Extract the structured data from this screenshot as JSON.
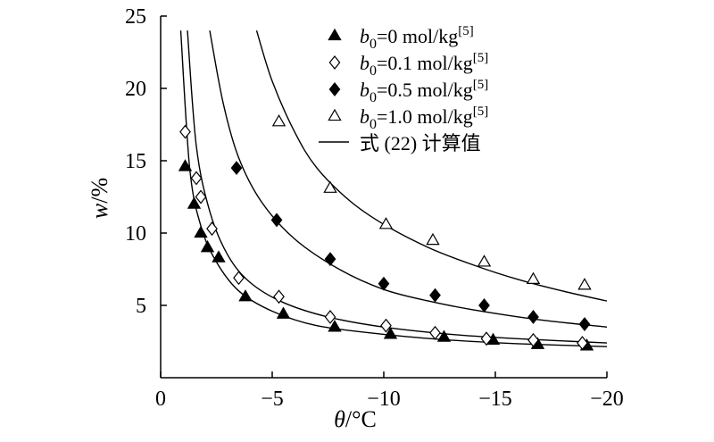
{
  "chart_data": {
    "type": "scatter",
    "xlabel_var": "θ",
    "xlabel_unit": "/°C",
    "ylabel_var": "w",
    "ylabel_unit": "/%",
    "xlim": [
      0,
      -20
    ],
    "ylim": [
      0,
      25
    ],
    "x_ticks": [
      {
        "value": 0,
        "label": "0"
      },
      {
        "value": -5,
        "label": "−5"
      },
      {
        "value": -10,
        "label": "−10"
      },
      {
        "value": -15,
        "label": "−15"
      },
      {
        "value": -20,
        "label": "−20"
      }
    ],
    "y_ticks": [
      {
        "value": 5,
        "label": "5"
      },
      {
        "value": 10,
        "label": "10"
      },
      {
        "value": 15,
        "label": "15"
      },
      {
        "value": 20,
        "label": "20"
      },
      {
        "value": 25,
        "label": "25"
      }
    ],
    "grid": false,
    "legend_position": "top-right",
    "series": [
      {
        "name": "b0=0 mol/kg[5]",
        "legend": {
          "sym": "b",
          "sub": "0",
          "text": "=0 mol/kg",
          "sup": "[5]"
        },
        "marker": "triangle-filled",
        "points": [
          [
            -1.1,
            14.6
          ],
          [
            -1.5,
            12.0
          ],
          [
            -1.8,
            10.0
          ],
          [
            -2.1,
            9.0
          ],
          [
            -2.6,
            8.3
          ],
          [
            -3.8,
            5.6
          ],
          [
            -5.5,
            4.4
          ],
          [
            -7.8,
            3.5
          ],
          [
            -10.3,
            3.0
          ],
          [
            -12.7,
            2.8
          ],
          [
            -14.9,
            2.6
          ],
          [
            -16.9,
            2.3
          ],
          [
            -19.1,
            2.2
          ]
        ],
        "curve": [
          [
            -0.9,
            24
          ],
          [
            -1.3,
            14.5
          ],
          [
            -1.8,
            10.5
          ],
          [
            -2.5,
            8.0
          ],
          [
            -3.5,
            6.0
          ],
          [
            -5,
            4.6
          ],
          [
            -7,
            3.6
          ],
          [
            -10,
            3.0
          ],
          [
            -13,
            2.6
          ],
          [
            -16,
            2.35
          ],
          [
            -20,
            2.15
          ]
        ]
      },
      {
        "name": "b0=0.1 mol/kg[5]",
        "legend": {
          "sym": "b",
          "sub": "0",
          "text": "=0.1 mol/kg",
          "sup": "[5]"
        },
        "marker": "diamond-open",
        "points": [
          [
            -1.1,
            17.0
          ],
          [
            -1.6,
            13.8
          ],
          [
            -1.8,
            12.5
          ],
          [
            -2.3,
            10.3
          ],
          [
            -3.5,
            6.9
          ],
          [
            -5.3,
            5.6
          ],
          [
            -7.6,
            4.2
          ],
          [
            -10.1,
            3.6
          ],
          [
            -12.3,
            3.1
          ],
          [
            -14.6,
            2.7
          ],
          [
            -16.7,
            2.6
          ],
          [
            -18.9,
            2.4
          ]
        ],
        "curve": [
          [
            -1.2,
            24
          ],
          [
            -1.6,
            16
          ],
          [
            -2.2,
            11.5
          ],
          [
            -3,
            8.5
          ],
          [
            -4,
            6.6
          ],
          [
            -5.5,
            5.2
          ],
          [
            -7.5,
            4.2
          ],
          [
            -10,
            3.5
          ],
          [
            -13,
            3.0
          ],
          [
            -16,
            2.7
          ],
          [
            -20,
            2.4
          ]
        ]
      },
      {
        "name": "b0=0.5 mol/kg[5]",
        "legend": {
          "sym": "b",
          "sub": "0",
          "text": "=0.5 mol/kg",
          "sup": "[5]"
        },
        "marker": "diamond-filled",
        "points": [
          [
            -3.4,
            14.5
          ],
          [
            -5.2,
            10.9
          ],
          [
            -7.6,
            8.2
          ],
          [
            -10.0,
            6.5
          ],
          [
            -12.3,
            5.7
          ],
          [
            -14.5,
            5.0
          ],
          [
            -16.7,
            4.2
          ],
          [
            -19.0,
            3.7
          ]
        ],
        "curve": [
          [
            -2.2,
            24
          ],
          [
            -2.8,
            19
          ],
          [
            -3.5,
            15.2
          ],
          [
            -4.5,
            12.2
          ],
          [
            -6,
            9.6
          ],
          [
            -8,
            7.5
          ],
          [
            -10,
            6.1
          ],
          [
            -12,
            5.3
          ],
          [
            -14,
            4.7
          ],
          [
            -17,
            4.0
          ],
          [
            -20,
            3.5
          ]
        ]
      },
      {
        "name": "b0=1.0 mol/kg[5]",
        "legend": {
          "sym": "b",
          "sub": "0",
          "text": "=1.0 mol/kg",
          "sup": "[5]"
        },
        "marker": "triangle-open",
        "points": [
          [
            -5.3,
            17.7
          ],
          [
            -7.6,
            13.1
          ],
          [
            -10.1,
            10.6
          ],
          [
            -12.2,
            9.5
          ],
          [
            -14.5,
            8.0
          ],
          [
            -16.7,
            6.8
          ],
          [
            -19.0,
            6.4
          ]
        ],
        "curve": [
          [
            -4.3,
            24
          ],
          [
            -5,
            20.5
          ],
          [
            -6,
            17
          ],
          [
            -7,
            14.5
          ],
          [
            -8.5,
            12.2
          ],
          [
            -10,
            10.6
          ],
          [
            -12,
            9.0
          ],
          [
            -14,
            7.8
          ],
          [
            -16,
            6.8
          ],
          [
            -18,
            6.0
          ],
          [
            -20,
            5.3
          ]
        ]
      }
    ],
    "fit_legend": "式 (22) 计算值"
  }
}
